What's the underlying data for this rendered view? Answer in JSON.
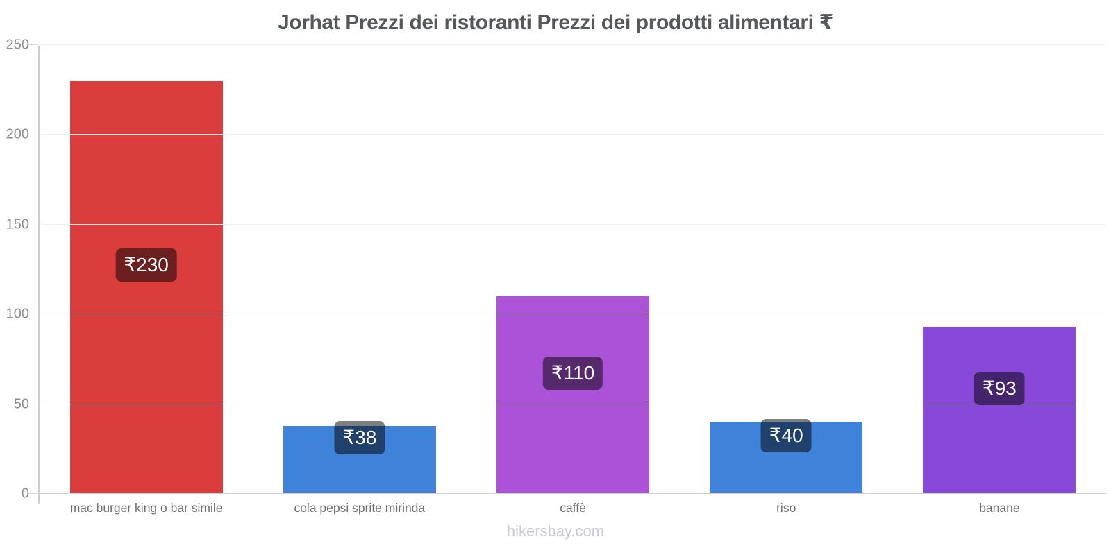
{
  "footer": {
    "watermark": "hikersbay.com"
  },
  "chart_data": {
    "type": "bar",
    "title": "Jorhat Prezzi dei ristoranti Prezzi dei prodotti alimentari ₹",
    "currency_symbol": "₹",
    "categories": [
      "mac burger king o bar simile",
      "cola pepsi sprite mirinda",
      "caffè",
      "riso",
      "banane"
    ],
    "values": [
      230,
      38,
      110,
      40,
      93
    ],
    "value_labels": [
      "₹230",
      "₹38",
      "₹110",
      "₹40",
      "₹93"
    ],
    "bar_colors": [
      "#db3c3c",
      "#3e83d9",
      "#ab52d8",
      "#3e83d9",
      "#8849da"
    ],
    "badge_overlay_color": "rgba(0,0,0,0.5)",
    "badge_text_color": "#ffffff",
    "xlabel": "",
    "ylabel": "",
    "ylim": [
      0,
      250
    ],
    "yticks": [
      0,
      50,
      100,
      150,
      200,
      250
    ],
    "grid": "horizontal-faint",
    "legend": "none"
  }
}
